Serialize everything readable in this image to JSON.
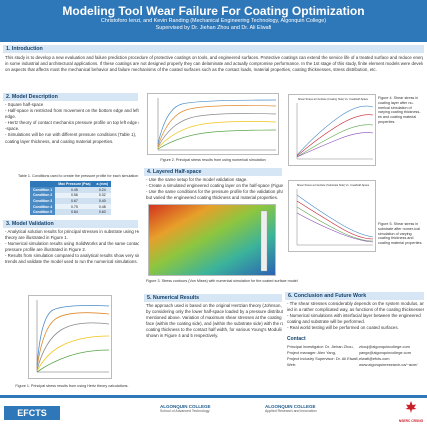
{
  "header": {
    "title": "Modeling Tool Wear Failure For Coating Optimization",
    "authors": "Christoforo Ienzi, and Kevin Randing (Mechanical Engineering Technology, Algonquin College)",
    "supervisors": "Supervised by Dr. Jiehan Zhou and Dr. Ali Elwafi"
  },
  "sections": {
    "introduction": {
      "heading": "1. Introduction",
      "lines": [
        "This study is to develop a new evaluation and failure prediction procedure of protective coatings on tools, and engineered surfaces. Protective coatings can extend the service life of a treated surface and reduce energy consumption",
        "in some industrial and architectural applications. If these coatings are not designed properly they can delaminate and actually compromise performance. In the 1st stage of this study, finite element models were developed to focus",
        "on aspects that affects most the mechanical behavior and failure mechanisms of the coated surfaces such as the contact loads, material properties, coating thicknesses, stress distribution, etc."
      ]
    },
    "model_description": {
      "heading": "2. Model Description",
      "lines": [
        "- Square half-space",
        "- Half-space is restricted from movement on the bottom edge and left",
        "  edge.",
        "- Hertz theory of contact mechanics pressure profile on top left edge of half",
        "  -space.",
        "- Simulations will be run with different pressure conditions (Table 1),",
        "  coating layer thickness, and coating material properties."
      ]
    },
    "validation": {
      "heading": "3. Model Validation",
      "lines": [
        "- Analytical solution results for principal stresses in substrate using Hertz",
        "  theory are illustrated in Figure 1.",
        "- Numerical simulation results using SolidWorks and the same contact",
        "  pressure profile are illustrated in Figure 2.",
        "- Results from simulation compared to analytical results show very similar",
        "  trends and validate the model used to run the numerical simulations."
      ]
    },
    "layered": {
      "heading": "4. Layered Half-space",
      "lines": [
        "- Use the same setup for the model validation stage.",
        "- Create a simulated engineered coating layer on the half-space (Figure 3).",
        "- Use the same conditions for the pressure profile for the validation phase",
        "  but varied the engineered coating thickness and material properties."
      ]
    },
    "numerical": {
      "heading": "5. Numerical Results",
      "lines": [
        "The approach used is based on the original Hertzian theory (Johnson, 1985),",
        "by considering only the lower half-space loaded by a pressure distribution",
        "mentioned above. Variation of maximum shear stresses at the coating inter-",
        "face (within the coating side), and (within the substrate side) with the ratio of",
        "coating thickness to the contact half width, for various Young's Modulii are",
        "shown in Figure 4 and 5 respectively."
      ]
    },
    "conclusion": {
      "heading": "6. Conclusion and Future Work",
      "lines": [
        "- The shear stresses considerably depends on the system  modulus, and var-",
        "  ied in a rather complicated way, as functions of the coating thicknesses t/a",
        "- Numerical simulations with interfacial layer between the engineered",
        "  coating and substrate will be performed.",
        "- Real world testing will be performed on coated surfaces."
      ]
    },
    "contact": {
      "heading": "Contact",
      "rows": [
        {
          "label": "Principal investigator: Dr. Jiehan Zhou,",
          "value": "zhouj@algonquincollege.com"
        },
        {
          "label": "Project manager: Alex Yang,",
          "value": "yangx@algonquincollege.com"
        },
        {
          "label": "Project Industry Supervisor: Dr. Ali Elwafi,",
          "value": "elwafi@efcts.com"
        },
        {
          "label": "Web:",
          "value": "www.algonquinresearch.ca/~acre/"
        }
      ]
    }
  },
  "table1": {
    "caption": "Table 1. Conditions used to create the pressure profile for each simulation",
    "headers": [
      "",
      "Max Pressure (Psa)",
      "a (mm)"
    ],
    "rows": [
      [
        "Condition 1",
        "0.45",
        "0.24"
      ],
      [
        "Condition 2",
        "0.56",
        "0.32"
      ],
      [
        "Condition 3",
        "0.67",
        "0.40"
      ],
      [
        "Condition 4",
        "0.75",
        "0.48"
      ],
      [
        "Condition 5",
        "0.84",
        "0.60"
      ]
    ]
  },
  "figures": {
    "fig1_caption": "Figure 1. Principal stress results from using Hertz theory calculations.",
    "fig2_caption": "Figure 2. Principal stress results from using numerical simulation",
    "fig3_caption": "Figure 3. Stress contours (Von Mises) with numerical simulation for the coated surface model",
    "fig4_caption": "Figure 4. Shear stress in coating layer after nu-merical simulation of varying coating thickness-es and coating material properties.",
    "fig5_caption": "Figure 5. Shear stress in substrate after numer-ical simulation of varying coating thickness and coating material properties.",
    "fig4_title": "Shear Stress at Interface (Coating Side) Vs. Coat/Half-Space",
    "fig5_title": "Shear Stress at Interface (Substrate Side) Vs. Coat/Half-Space"
  },
  "logos": {
    "efcts": "EFCTS",
    "algonquin_school": "ALGONQUIN COLLEGE",
    "algonquin_school_sub": "School of Advanced Technology",
    "algonquin_research": "ALGONQUIN COLLEGE",
    "algonquin_research_sub": "Applied Research and Innovation",
    "nserc": "NSERC CRSNG"
  },
  "colors": {
    "primary": "#2e77b8",
    "section_bar": "#d6e6f4",
    "accent_red": "#c8202b"
  }
}
